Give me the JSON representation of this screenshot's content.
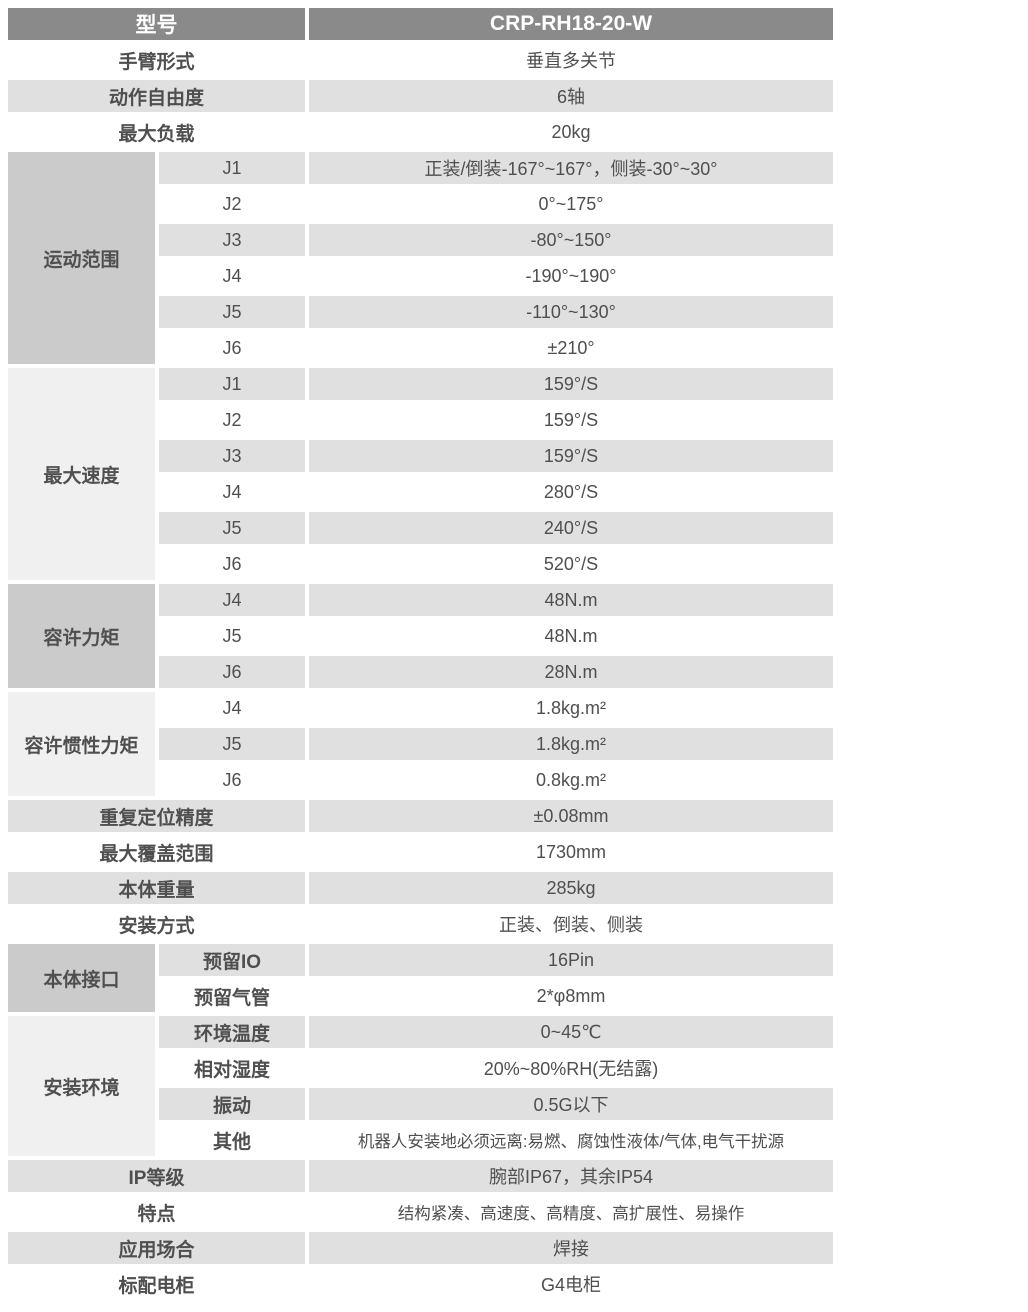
{
  "colors": {
    "header_bg": "#8a8a8a",
    "header_text": "#ffffff",
    "row_gray": "#e0e0e0",
    "group_dark": "#cbcbcb",
    "group_light": "#f0f0f0",
    "text": "#4f4f4f"
  },
  "table": {
    "rows": [
      {
        "kind": "header",
        "label": "型号",
        "value": "CRP-RH18-20-W"
      },
      {
        "kind": "simple",
        "label": "手臂形式",
        "value": "垂直多关节"
      },
      {
        "kind": "simple",
        "label": "动作自由度",
        "value": "6轴"
      },
      {
        "kind": "simple",
        "label": "最大负载",
        "value": "20kg"
      },
      {
        "kind": "group",
        "label": "运动范围",
        "shade": "dark",
        "bold_sub": false,
        "rows": [
          {
            "label": "J1",
            "value": "正装/倒装-167°~167°，侧装-30°~30°"
          },
          {
            "label": "J2",
            "value": "0°~175°"
          },
          {
            "label": "J3",
            "value": "-80°~150°"
          },
          {
            "label": "J4",
            "value": "-190°~190°"
          },
          {
            "label": "J5",
            "value": "-110°~130°"
          },
          {
            "label": "J6",
            "value": "±210°"
          }
        ]
      },
      {
        "kind": "group",
        "label": "最大速度",
        "shade": "light",
        "bold_sub": false,
        "rows": [
          {
            "label": "J1",
            "value": "159°/S"
          },
          {
            "label": "J2",
            "value": "159°/S"
          },
          {
            "label": "J3",
            "value": "159°/S"
          },
          {
            "label": "J4",
            "value": "280°/S"
          },
          {
            "label": "J5",
            "value": "240°/S"
          },
          {
            "label": "J6",
            "value": "520°/S"
          }
        ]
      },
      {
        "kind": "group",
        "label": "容许力矩",
        "shade": "dark",
        "bold_sub": false,
        "rows": [
          {
            "label": "J4",
            "value": "48N.m"
          },
          {
            "label": "J5",
            "value": "48N.m"
          },
          {
            "label": "J6",
            "value": "28N.m"
          }
        ]
      },
      {
        "kind": "group",
        "label": "容许惯性力矩",
        "shade": "light",
        "bold_sub": false,
        "rows": [
          {
            "label": "J4",
            "value": "1.8kg.m²"
          },
          {
            "label": "J5",
            "value": "1.8kg.m²"
          },
          {
            "label": "J6",
            "value": "0.8kg.m²"
          }
        ]
      },
      {
        "kind": "simple",
        "label": "重复定位精度",
        "value": "±0.08mm"
      },
      {
        "kind": "simple",
        "label": "最大覆盖范围",
        "value": "1730mm"
      },
      {
        "kind": "simple",
        "label": "本体重量",
        "value": "285kg"
      },
      {
        "kind": "simple",
        "label": "安装方式",
        "value": "正装、倒装、侧装"
      },
      {
        "kind": "group",
        "label": "本体接口",
        "shade": "dark",
        "bold_sub": true,
        "rows": [
          {
            "label": "预留IO",
            "value": "16Pin"
          },
          {
            "label": "预留气管",
            "value": "2*φ8mm"
          }
        ]
      },
      {
        "kind": "group",
        "label": "安装环境",
        "shade": "light",
        "bold_sub": true,
        "rows": [
          {
            "label": "环境温度",
            "value": "0~45℃"
          },
          {
            "label": "相对湿度",
            "value": "20%~80%RH(无结露)"
          },
          {
            "label": "振动",
            "value": "0.5G以下"
          },
          {
            "label": "其他",
            "value": "机器人安装地必须远离:易燃、腐蚀性液体/气体,电气干扰源",
            "small": true
          }
        ]
      },
      {
        "kind": "simple",
        "label": "IP等级",
        "value": "腕部IP67，其余IP54"
      },
      {
        "kind": "simple",
        "label": "特点",
        "value": "结构紧凑、高速度、高精度、高扩展性、易操作",
        "small": true
      },
      {
        "kind": "simple",
        "label": "应用场合",
        "value": "焊接"
      },
      {
        "kind": "simple",
        "label": "标配电柜",
        "value": "G4电柜"
      }
    ]
  }
}
